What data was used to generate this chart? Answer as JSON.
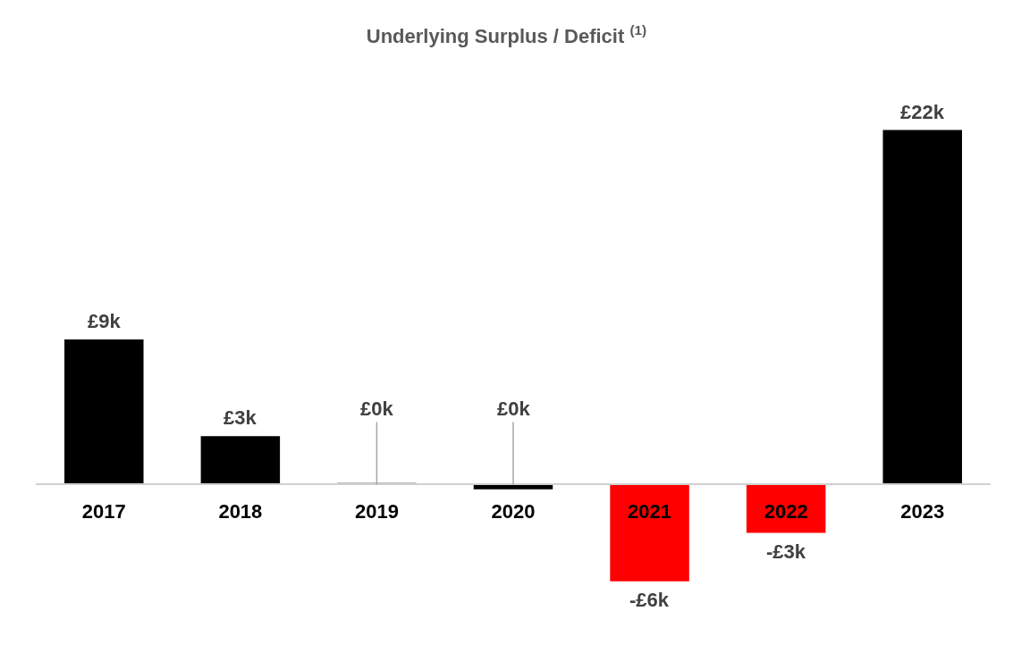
{
  "chart_data": {
    "type": "bar",
    "title": "Underlying Surplus / Deficit $^{(1)}$",
    "categories": [
      "2017",
      "2018",
      "2019",
      "2020",
      "2021",
      "2022",
      "2023"
    ],
    "values": [
      9,
      3,
      0.1,
      -0.3,
      -6,
      -3,
      22
    ],
    "colors": [
      "#000000",
      "#000000",
      "#000000",
      "#000000",
      "#ff0000",
      "#ff0000",
      "#000000"
    ],
    "value_labels": [
      "£9k",
      "£3k",
      "£0k",
      "£0k",
      "-£6k",
      "-£3k",
      "£22k"
    ]
  }
}
